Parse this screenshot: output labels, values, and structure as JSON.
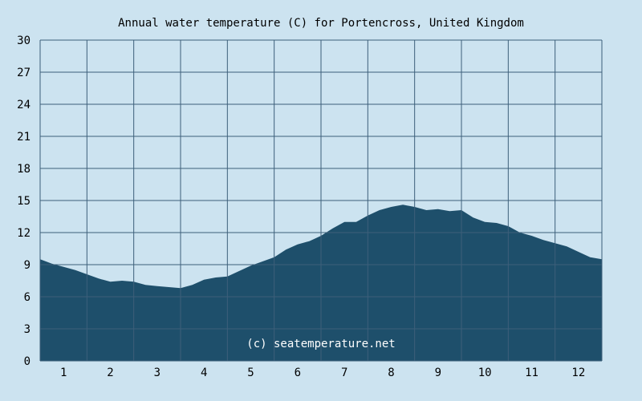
{
  "chart_data": {
    "type": "area",
    "title": "Annual water temperature (C) for Portencross, United Kingdom",
    "watermark": "(c) seatemperature.net",
    "xlabel": "",
    "ylabel": "",
    "ylim": [
      0,
      30
    ],
    "yticks": [
      0,
      3,
      6,
      9,
      12,
      15,
      18,
      21,
      24,
      27,
      30
    ],
    "xlim": [
      1,
      13
    ],
    "xticks": [
      "1",
      "2",
      "3",
      "4",
      "5",
      "6",
      "7",
      "8",
      "9",
      "10",
      "11",
      "12"
    ],
    "grid": true,
    "colors": {
      "background": "#cce3f0",
      "fill": "#1e4f6b",
      "grid": "#3d5f7a"
    },
    "series": [
      {
        "x": [
          1.0,
          1.25,
          1.5,
          1.75,
          2.0,
          2.25,
          2.5,
          2.75,
          3.0,
          3.25,
          3.5,
          3.75,
          4.0,
          4.25,
          4.5,
          4.75,
          5.0,
          5.25,
          5.5,
          5.75,
          6.0,
          6.25,
          6.5,
          6.75,
          7.0,
          7.25,
          7.5,
          7.75,
          8.0,
          8.25,
          8.5,
          8.75,
          9.0,
          9.25,
          9.5,
          9.75,
          10.0,
          10.25,
          10.5,
          10.75,
          11.0,
          11.25,
          11.5,
          11.75,
          12.0,
          12.25,
          12.5,
          12.75,
          13.0
        ],
        "values": [
          9.5,
          9.1,
          8.8,
          8.5,
          8.1,
          7.7,
          7.4,
          7.5,
          7.4,
          7.1,
          7.0,
          6.9,
          6.8,
          7.1,
          7.6,
          7.8,
          7.9,
          8.4,
          8.9,
          9.3,
          9.7,
          10.4,
          10.9,
          11.2,
          11.7,
          12.4,
          13.0,
          13.0,
          13.6,
          14.1,
          14.4,
          14.6,
          14.4,
          14.1,
          14.2,
          14.0,
          14.1,
          13.4,
          13.0,
          12.9,
          12.6,
          12.0,
          11.7,
          11.3,
          11.0,
          10.7,
          10.2,
          9.7,
          9.5
        ]
      }
    ]
  }
}
